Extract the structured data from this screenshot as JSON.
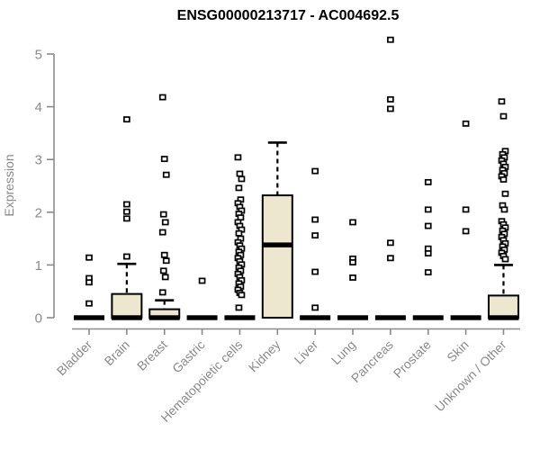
{
  "chart_data": {
    "type": "boxplot",
    "title": "ENSG00000213717 - AC004692.5",
    "ylabel": "Expression",
    "xlabel": "",
    "ylim": [
      0,
      5
    ],
    "yticks": [
      "0",
      "1",
      "2",
      "3",
      "4",
      "5"
    ],
    "grid": "off",
    "legend": "none",
    "colors": {
      "box_fill": "#ede7cf",
      "box_stroke": "#000000",
      "median_color": "#000000",
      "outlier_stroke": "#000000",
      "axis_color": "#8a8a8a",
      "title_color": "#000000",
      "background": "#ffffff"
    },
    "categories": [
      "Bladder",
      "Brain",
      "Breast",
      "Gastric",
      "Hematopoietic cells",
      "Kidney",
      "Liver",
      "Lung",
      "Pancreas",
      "Prostate",
      "Skin",
      "Unknown / Other"
    ],
    "series": [
      {
        "category": "Bladder",
        "q1": 0,
        "median": 0,
        "q3": 0,
        "whisker_low": 0,
        "whisker_high": 0,
        "outliers": [
          1.14,
          0.75,
          0.67,
          0.27
        ]
      },
      {
        "category": "Brain",
        "q1": 0,
        "median": 0,
        "q3": 0.45,
        "whisker_low": 0,
        "whisker_high": 1.02,
        "outliers": [
          3.76,
          2.15,
          2.01,
          1.88,
          1.16
        ]
      },
      {
        "category": "Breast",
        "q1": 0,
        "median": 0,
        "q3": 0.16,
        "whisker_low": 0,
        "whisker_high": 0.33,
        "outliers": [
          4.18,
          3.01,
          2.71,
          1.96,
          1.81,
          1.62,
          1.19,
          1.08,
          0.89,
          0.77,
          0.48
        ]
      },
      {
        "category": "Gastric",
        "q1": 0,
        "median": 0,
        "q3": 0,
        "whisker_low": 0,
        "whisker_high": 0,
        "outliers": [
          0.7
        ]
      },
      {
        "category": "Hematopoietic cells",
        "q1": 0,
        "median": 0,
        "q3": 0,
        "whisker_low": 0,
        "whisker_high": 0,
        "outliers": [
          3.04,
          2.73,
          2.63,
          2.46,
          2.24,
          2.17,
          2.1,
          2.03,
          1.97,
          1.9,
          1.81,
          1.74,
          1.67,
          1.6,
          1.5,
          1.43,
          1.37,
          1.31,
          1.25,
          1.19,
          1.13,
          1.07,
          1.01,
          0.95,
          0.89,
          0.83,
          0.77,
          0.71,
          0.65,
          0.59,
          0.53,
          0.47,
          0.43,
          0.19
        ]
      },
      {
        "category": "Kidney",
        "q1": 0,
        "median": 1.38,
        "q3": 2.32,
        "whisker_low": 0,
        "whisker_high": 3.32,
        "outliers": []
      },
      {
        "category": "Liver",
        "q1": 0,
        "median": 0,
        "q3": 0,
        "whisker_low": 0,
        "whisker_high": 0,
        "outliers": [
          2.78,
          1.86,
          1.56,
          0.87,
          0.19
        ]
      },
      {
        "category": "Lung",
        "q1": 0,
        "median": 0,
        "q3": 0,
        "whisker_low": 0,
        "whisker_high": 0,
        "outliers": [
          1.81,
          1.12,
          1.05,
          0.76
        ]
      },
      {
        "category": "Pancreas",
        "q1": 0,
        "median": 0,
        "q3": 0,
        "whisker_low": 0,
        "whisker_high": 0,
        "outliers": [
          5.27,
          4.14,
          3.96,
          1.42,
          1.13
        ]
      },
      {
        "category": "Prostate",
        "q1": 0,
        "median": 0,
        "q3": 0,
        "whisker_low": 0,
        "whisker_high": 0,
        "outliers": [
          2.57,
          2.05,
          1.74,
          1.31,
          1.22,
          0.86
        ]
      },
      {
        "category": "Skin",
        "q1": 0,
        "median": 0,
        "q3": 0,
        "whisker_low": 0,
        "whisker_high": 0,
        "outliers": [
          3.68,
          2.05,
          1.64
        ]
      },
      {
        "category": "Unknown / Other",
        "q1": 0,
        "median": 0,
        "q3": 0.42,
        "whisker_low": 0,
        "whisker_high": 1.0,
        "outliers": [
          4.1,
          3.82,
          3.16,
          3.1,
          3.04,
          2.98,
          2.92,
          2.86,
          2.8,
          2.74,
          2.68,
          2.62,
          2.35,
          2.13,
          2.05,
          1.83,
          1.77,
          1.71,
          1.65,
          1.59,
          1.53,
          1.47,
          1.41,
          1.35,
          1.29,
          1.23,
          1.17,
          1.11
        ]
      }
    ]
  }
}
